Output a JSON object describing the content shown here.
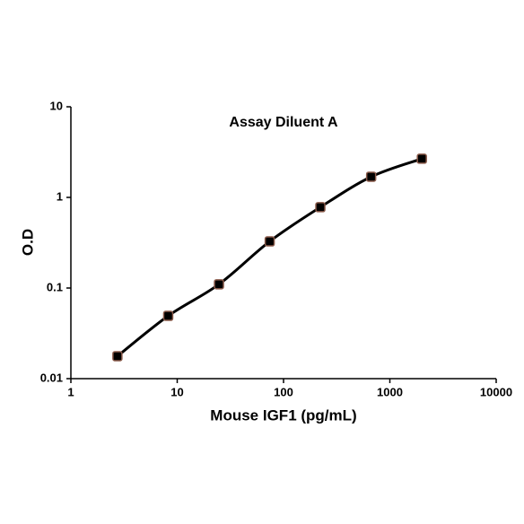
{
  "chart_data": {
    "type": "line",
    "title": "Assay Diluent A",
    "x_label": "Mouse IGF1 (pg/mL)",
    "y_label": "O.D",
    "x": [
      2.74,
      8.23,
      24.7,
      74.1,
      222,
      667,
      2000
    ],
    "series": [
      {
        "color": "#000000",
        "values": [
          0.0177,
          0.0493,
          0.11,
          0.327,
          0.78,
          1.69,
          2.67
        ]
      }
    ],
    "xlim": [
      1,
      10000
    ],
    "ylim": [
      0.01,
      10
    ],
    "xticks": [
      1,
      10,
      100,
      1000,
      10000
    ],
    "yticks": [
      0.01,
      0.1,
      1,
      10
    ],
    "x_log": true,
    "y_log": true,
    "grid": false
  }
}
